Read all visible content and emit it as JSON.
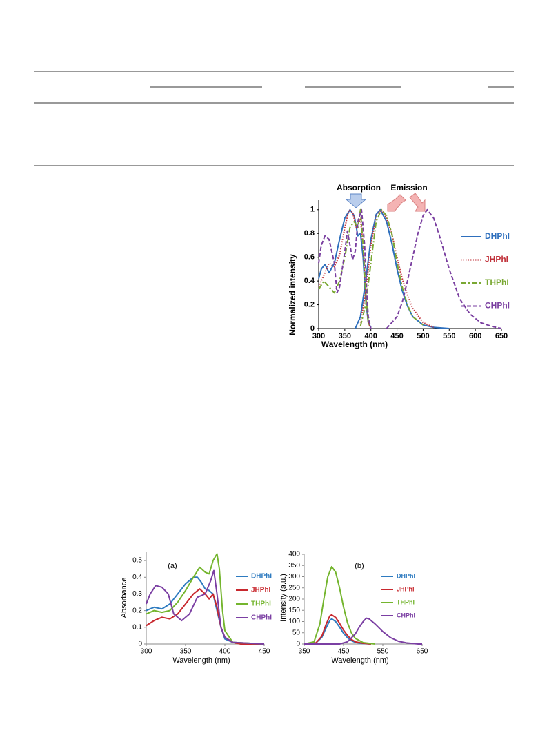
{
  "chart_data": [
    {
      "type": "line",
      "xlabel": "Wavelength (nm)",
      "ylabel": "Normalized intensity",
      "annotations": [
        "Absorption",
        "Emission"
      ],
      "xlim": [
        300,
        650
      ],
      "xticks": [
        300,
        350,
        400,
        450,
        500,
        550,
        600,
        650
      ],
      "ylim": [
        0,
        1.08
      ],
      "yticks": [
        0,
        0.2,
        0.4,
        0.6,
        0.8,
        1
      ],
      "legend": "right",
      "grid": false,
      "series": [
        {
          "name": "DHPhI",
          "color": "#2e6fbd",
          "style": "solid",
          "curves": [
            {
              "x": [
                300,
                305,
                312,
                320,
                330,
                340,
                350,
                360,
                368,
                375,
                380,
                385,
                390,
                395,
                400
              ],
              "values": [
                0.42,
                0.5,
                0.54,
                0.47,
                0.55,
                0.75,
                0.93,
                1.0,
                0.95,
                0.78,
                0.8,
                0.6,
                0.25,
                0.05,
                0.01
              ]
            },
            {
              "x": [
                370,
                380,
                390,
                400,
                410,
                418,
                430,
                440,
                450,
                460,
                470,
                480,
                500,
                520,
                550
              ],
              "values": [
                0,
                0.1,
                0.4,
                0.75,
                0.96,
                1.0,
                0.9,
                0.72,
                0.5,
                0.32,
                0.19,
                0.1,
                0.03,
                0.01,
                0
              ]
            }
          ]
        },
        {
          "name": "JHPhI",
          "color": "#c0313a",
          "style": "dotted",
          "curves": [
            {
              "x": [
                300,
                310,
                320,
                330,
                340,
                350,
                358,
                365,
                372,
                380,
                385,
                390,
                395,
                400
              ],
              "values": [
                0.35,
                0.45,
                0.55,
                0.52,
                0.62,
                0.85,
                1.0,
                0.98,
                0.85,
                0.92,
                0.7,
                0.3,
                0.05,
                0
              ]
            },
            {
              "x": [
                380,
                390,
                400,
                410,
                420,
                430,
                440,
                450,
                460,
                470,
                480,
                500,
                520
              ],
              "values": [
                0.05,
                0.3,
                0.7,
                0.95,
                1.0,
                0.93,
                0.8,
                0.6,
                0.42,
                0.28,
                0.17,
                0.05,
                0.01
              ]
            }
          ]
        },
        {
          "name": "THPhI",
          "color": "#7aa833",
          "style": "dashdot",
          "curves": [
            {
              "x": [
                300,
                310,
                320,
                330,
                340,
                350,
                360,
                368,
                375,
                380,
                385,
                390,
                395,
                400
              ],
              "values": [
                0.33,
                0.4,
                0.35,
                0.3,
                0.4,
                0.6,
                0.85,
                0.9,
                0.85,
                1.0,
                0.7,
                0.3,
                0.05,
                0
              ]
            },
            {
              "x": [
                380,
                390,
                400,
                410,
                420,
                430,
                440,
                450,
                460,
                470,
                480,
                500
              ],
              "values": [
                0.02,
                0.2,
                0.55,
                0.9,
                1.0,
                0.95,
                0.8,
                0.55,
                0.35,
                0.2,
                0.1,
                0.03
              ]
            }
          ]
        },
        {
          "name": "CHPhI",
          "color": "#7a3fa0",
          "style": "dashed",
          "curves": [
            {
              "x": [
                300,
                305,
                312,
                320,
                330,
                335,
                340,
                350,
                355,
                360,
                365,
                370,
                375,
                382,
                388,
                392,
                395,
                400
              ],
              "values": [
                0.55,
                0.7,
                0.78,
                0.75,
                0.55,
                0.3,
                0.35,
                0.65,
                0.82,
                0.7,
                0.58,
                0.65,
                0.9,
                1.0,
                0.7,
                0.3,
                0.1,
                0
              ]
            },
            {
              "x": [
                430,
                450,
                460,
                470,
                480,
                490,
                500,
                508,
                520,
                530,
                550,
                570,
                590,
                610,
                630,
                650
              ],
              "values": [
                0,
                0.1,
                0.22,
                0.4,
                0.6,
                0.8,
                0.95,
                1.0,
                0.93,
                0.8,
                0.5,
                0.25,
                0.12,
                0.05,
                0.02,
                0
              ]
            }
          ]
        }
      ]
    },
    {
      "type": "line",
      "xlabel": "Wavelength (nm)",
      "ylabel": "Absorbance",
      "annotations": [
        "(a)"
      ],
      "xlim": [
        300,
        450
      ],
      "xticks": [
        300,
        350,
        400,
        450
      ],
      "ylim": [
        0,
        0.55
      ],
      "yticks": [
        0,
        0.1,
        0.2,
        0.3,
        0.4,
        0.5
      ],
      "legend": "right",
      "grid": false,
      "series": [
        {
          "name": "DHPhI",
          "color": "#2e7bc0",
          "x": [
            300,
            310,
            320,
            330,
            340,
            350,
            360,
            365,
            370,
            375,
            380,
            385,
            390,
            395,
            400,
            410,
            450
          ],
          "values": [
            0.2,
            0.22,
            0.21,
            0.24,
            0.3,
            0.36,
            0.4,
            0.4,
            0.37,
            0.33,
            0.32,
            0.3,
            0.2,
            0.1,
            0.03,
            0.01,
            0
          ]
        },
        {
          "name": "JHPhI",
          "color": "#c8282e",
          "x": [
            300,
            310,
            320,
            330,
            340,
            350,
            360,
            368,
            375,
            380,
            385,
            390,
            395,
            400,
            410,
            420,
            450
          ],
          "values": [
            0.11,
            0.14,
            0.16,
            0.15,
            0.18,
            0.24,
            0.3,
            0.33,
            0.3,
            0.27,
            0.3,
            0.22,
            0.1,
            0.04,
            0.01,
            0,
            0
          ]
        },
        {
          "name": "THPhI",
          "color": "#74b52e",
          "x": [
            300,
            310,
            320,
            330,
            340,
            350,
            360,
            368,
            375,
            380,
            385,
            390,
            393,
            397,
            400,
            410,
            450
          ],
          "values": [
            0.18,
            0.2,
            0.19,
            0.2,
            0.25,
            0.32,
            0.4,
            0.46,
            0.43,
            0.42,
            0.5,
            0.54,
            0.45,
            0.2,
            0.08,
            0.01,
            0
          ]
        },
        {
          "name": "CHPhI",
          "color": "#7b3fa3",
          "x": [
            300,
            305,
            312,
            320,
            328,
            335,
            345,
            355,
            365,
            375,
            382,
            386,
            390,
            395,
            400,
            410,
            450
          ],
          "values": [
            0.24,
            0.3,
            0.35,
            0.34,
            0.3,
            0.18,
            0.14,
            0.18,
            0.28,
            0.3,
            0.38,
            0.44,
            0.3,
            0.1,
            0.04,
            0.01,
            0
          ]
        }
      ]
    },
    {
      "type": "line",
      "xlabel": "Wavelength (nm)",
      "ylabel": "Intensity (a.u.)",
      "annotations": [
        "(b)"
      ],
      "xlim": [
        350,
        650
      ],
      "xticks": [
        350,
        450,
        550,
        650
      ],
      "ylim": [
        0,
        400
      ],
      "yticks": [
        0,
        50,
        100,
        150,
        200,
        250,
        300,
        350,
        400
      ],
      "legend": "right",
      "grid": false,
      "series": [
        {
          "name": "DHPhI",
          "color": "#2e7bc0",
          "x": [
            350,
            380,
            395,
            405,
            415,
            420,
            430,
            440,
            450,
            460,
            470,
            480,
            500,
            520
          ],
          "values": [
            0,
            5,
            30,
            70,
            105,
            112,
            100,
            75,
            48,
            28,
            15,
            7,
            2,
            0
          ]
        },
        {
          "name": "JHPhI",
          "color": "#c8282e",
          "x": [
            350,
            380,
            395,
            405,
            415,
            420,
            430,
            440,
            450,
            460,
            470,
            480,
            500,
            520
          ],
          "values": [
            0,
            5,
            35,
            85,
            125,
            130,
            118,
            92,
            62,
            38,
            20,
            10,
            3,
            0
          ]
        },
        {
          "name": "THPhI",
          "color": "#74b52e",
          "x": [
            350,
            375,
            390,
            400,
            410,
            420,
            430,
            440,
            450,
            460,
            470,
            480,
            500,
            530
          ],
          "values": [
            0,
            10,
            90,
            200,
            300,
            345,
            320,
            250,
            165,
            95,
            50,
            25,
            6,
            0
          ]
        },
        {
          "name": "CHPhI",
          "color": "#7b3fa3",
          "x": [
            350,
            440,
            460,
            480,
            490,
            500,
            508,
            515,
            530,
            550,
            570,
            590,
            610,
            640,
            650
          ],
          "values": [
            0,
            0,
            10,
            45,
            75,
            100,
            115,
            112,
            90,
            55,
            28,
            12,
            5,
            0,
            0
          ]
        }
      ]
    }
  ]
}
